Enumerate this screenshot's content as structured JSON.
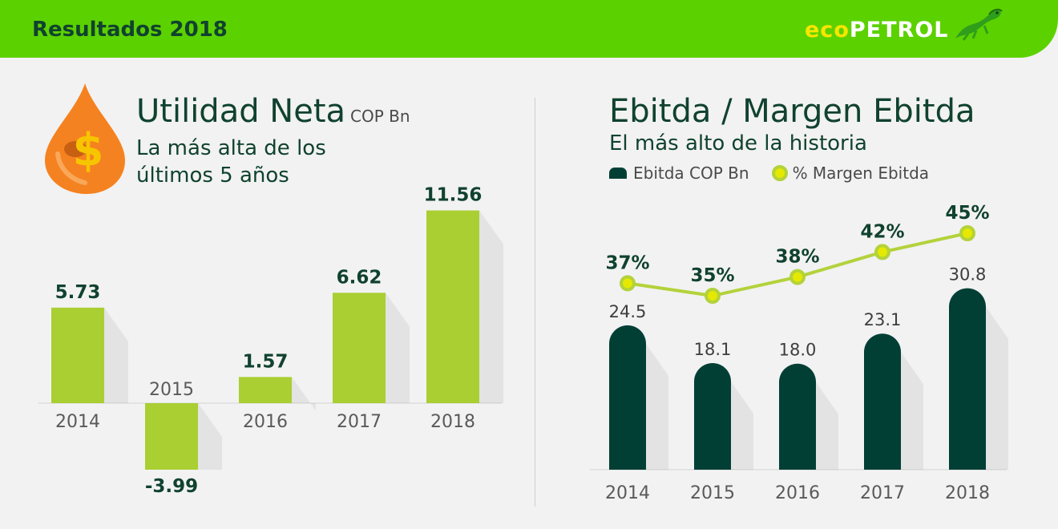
{
  "header": {
    "title": "Resultados 2018",
    "logo_eco": "eco",
    "logo_petrol": "PETROL"
  },
  "left": {
    "title": "Utilidad Neta",
    "unit": "COP Bn",
    "subtitle": "La más alta de los últimos 5 años"
  },
  "right": {
    "title": "Ebitda / Margen Ebitda",
    "subtitle": "El más alto de la historia",
    "legend_bar": "Ebitda COP Bn",
    "legend_line": "% Margen Ebitda"
  },
  "colors": {
    "header_green": "#5cd100",
    "bar_green": "#a9cf32",
    "ebitda_bar": "#013f35",
    "line": "#b3d23b",
    "dot": "#e5e900",
    "text_dark": "#10422f"
  },
  "icons": [
    "oil-drop-dollar-icon",
    "iguana-logo-icon"
  ],
  "chart_data": [
    {
      "type": "bar",
      "title": "Utilidad Neta",
      "categories": [
        "2014",
        "2015",
        "2016",
        "2017",
        "2018"
      ],
      "values": [
        5.73,
        -3.99,
        1.57,
        6.62,
        11.56
      ],
      "value_labels": [
        "5.73",
        "-3.99",
        "1.57",
        "6.62",
        "11.56"
      ],
      "unit": "COP Bn",
      "ylim": [
        -4,
        12
      ]
    },
    {
      "type": "bar",
      "title": "Ebitda / Margen Ebitda",
      "categories": [
        "2014",
        "2015",
        "2016",
        "2017",
        "2018"
      ],
      "series": [
        {
          "name": "Ebitda COP Bn",
          "type": "bar",
          "values": [
            24.5,
            18.1,
            18.0,
            23.1,
            30.8
          ],
          "labels": [
            "24.5",
            "18.1",
            "18.0",
            "23.1",
            "30.8"
          ]
        },
        {
          "name": "% Margen Ebitda",
          "type": "line",
          "values": [
            37,
            35,
            38,
            42,
            45
          ],
          "labels": [
            "37%",
            "35%",
            "38%",
            "42%",
            "45%"
          ]
        }
      ]
    }
  ]
}
